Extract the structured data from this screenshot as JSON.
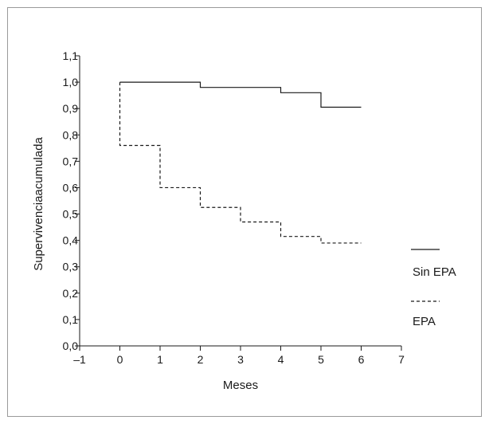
{
  "chart_data": {
    "type": "line",
    "step": true,
    "title": "",
    "xlabel": "Meses",
    "ylabel": "Supervivenciaacumulada",
    "xlim": [
      -1,
      7
    ],
    "ylim": [
      0,
      1.1
    ],
    "x_ticks": [
      "–1",
      "0",
      "1",
      "2",
      "3",
      "4",
      "5",
      "6",
      "7"
    ],
    "y_ticks": [
      "0,0",
      "0,1",
      "0,2",
      "0,3",
      "0,4",
      "0,5",
      "0,6",
      "0,7",
      "0,8",
      "0,9",
      "1,0",
      "1,1"
    ],
    "grid": false,
    "legend_position": "right",
    "series": [
      {
        "name": "Sin EPA",
        "line_style": "solid",
        "color": "#1a1a1a",
        "points": [
          [
            0,
            1.0
          ],
          [
            2,
            1.0
          ],
          [
            2,
            0.98
          ],
          [
            4,
            0.98
          ],
          [
            4,
            0.96
          ],
          [
            5,
            0.96
          ],
          [
            5,
            0.905
          ],
          [
            6,
            0.905
          ]
        ]
      },
      {
        "name": "EPA",
        "line_style": "dashed",
        "color": "#1a1a1a",
        "points": [
          [
            0,
            1.0
          ],
          [
            0,
            0.76
          ],
          [
            1,
            0.76
          ],
          [
            1,
            0.6
          ],
          [
            2,
            0.6
          ],
          [
            2,
            0.525
          ],
          [
            3,
            0.525
          ],
          [
            3,
            0.47
          ],
          [
            4,
            0.47
          ],
          [
            4,
            0.415
          ],
          [
            5,
            0.415
          ],
          [
            5,
            0.39
          ],
          [
            6,
            0.39
          ]
        ]
      }
    ]
  }
}
